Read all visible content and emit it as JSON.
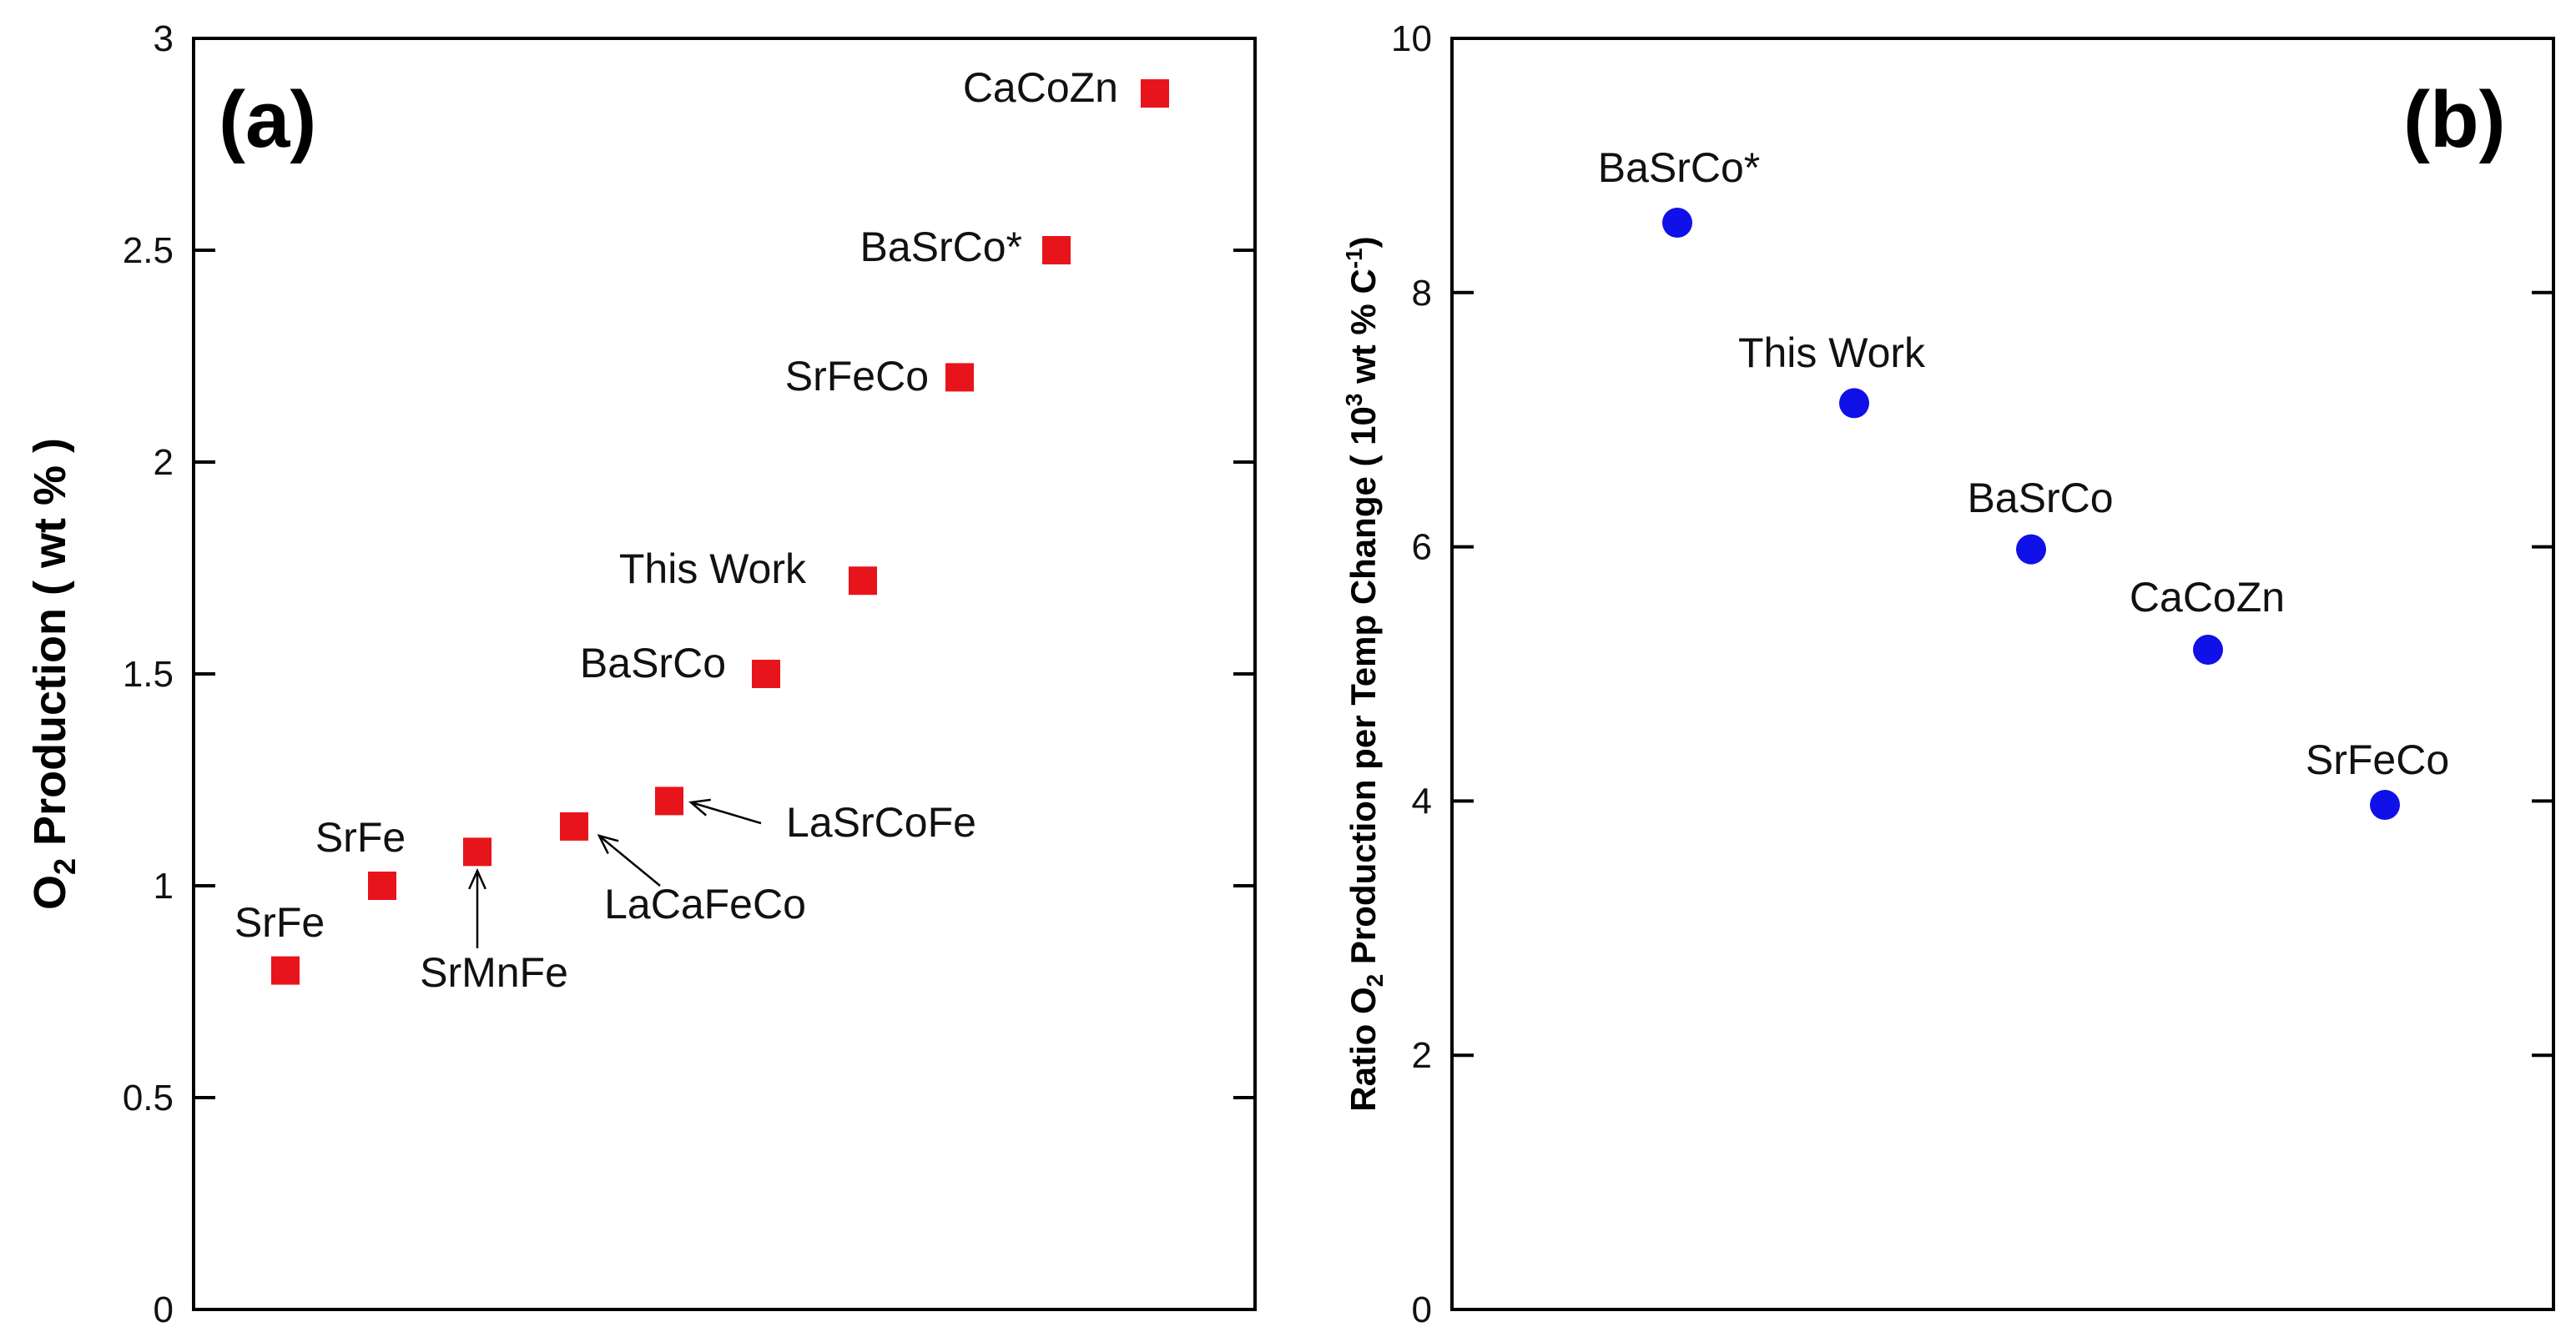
{
  "chart_data": [
    {
      "type": "scatter",
      "panel_label": "(a)",
      "ylabel": {
        "prefix": "O",
        "sub": "2",
        "rest": " Production  ( wt % )"
      },
      "ylim": [
        0,
        3
      ],
      "yticks": [
        "0",
        "0.5",
        "1",
        "1.5",
        "2",
        "2.5",
        "3"
      ],
      "marker": "square",
      "color": "#e8141b",
      "points": [
        {
          "label": "SrFe",
          "y": 0.8
        },
        {
          "label": "SrFe",
          "y": 1.0
        },
        {
          "label": "SrMnFe",
          "y": 1.08
        },
        {
          "label": "LaCaFeCo",
          "y": 1.14
        },
        {
          "label": "LaSrCoFe",
          "y": 1.2
        },
        {
          "label": "BaSrCo",
          "y": 1.5
        },
        {
          "label": "This Work",
          "y": 1.72
        },
        {
          "label": "SrFeCo",
          "y": 2.2
        },
        {
          "label": "BaSrCo*",
          "y": 2.5
        },
        {
          "label": "CaCoZn",
          "y": 2.87
        }
      ]
    },
    {
      "type": "scatter",
      "panel_label": "(b)",
      "ylabel": {
        "prefix": "Ratio O",
        "sub": "2",
        "mid": " Production per Temp Change ( 10",
        "sup1": "3",
        "mid2": " wt % C",
        "sup2": "-1",
        "end": ")"
      },
      "ylim": [
        0,
        10
      ],
      "yticks": [
        "0",
        "2",
        "4",
        "6",
        "8",
        "10"
      ],
      "marker": "circle",
      "color": "#1010e8",
      "points": [
        {
          "label": "BaSrCo*",
          "y": 8.55
        },
        {
          "label": "This Work",
          "y": 7.13
        },
        {
          "label": "BaSrCo",
          "y": 5.98
        },
        {
          "label": "CaCoZn",
          "y": 5.19
        },
        {
          "label": "SrFeCo",
          "y": 3.97
        }
      ]
    }
  ]
}
